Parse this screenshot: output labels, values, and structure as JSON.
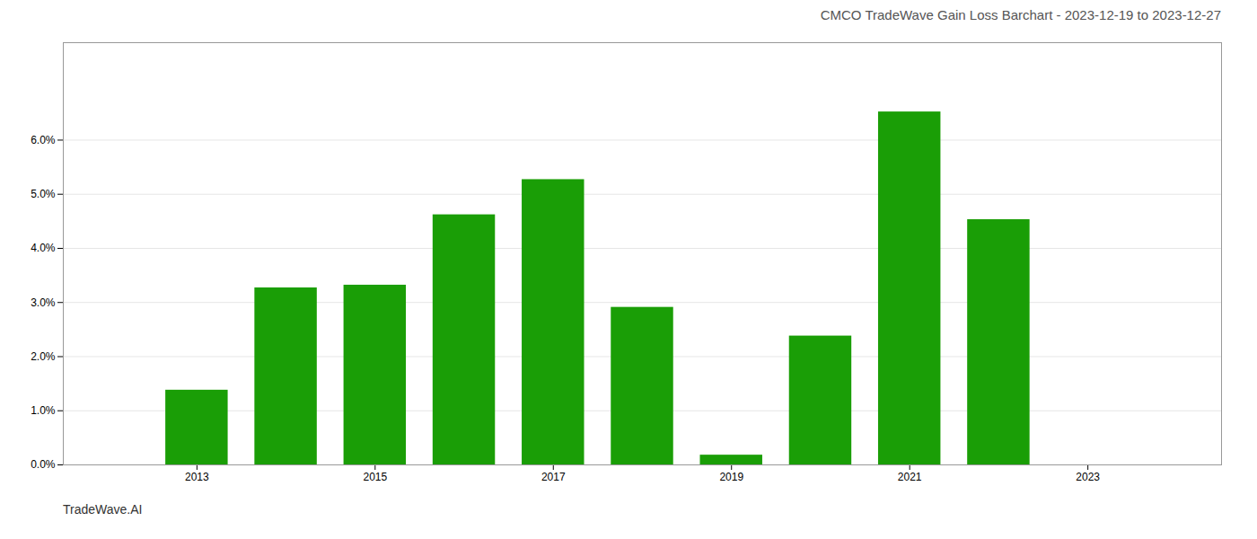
{
  "chart_data": {
    "type": "bar",
    "title": "CMCO TradeWave Gain Loss Barchart - 2023-12-19 to 2023-12-27",
    "annotations": [
      "TradeWave.AI"
    ],
    "x": [
      2013,
      2014,
      2015,
      2016,
      2017,
      2018,
      2019,
      2020,
      2021,
      2022
    ],
    "values": [
      0.0138,
      0.0327,
      0.0332,
      0.0462,
      0.0527,
      0.0291,
      0.0018,
      0.0238,
      0.0652,
      0.0453
    ],
    "color": "#1a9e06",
    "xlim": [
      2011.5,
      2024.5
    ],
    "xticks": [
      2013,
      2015,
      2017,
      2019,
      2021,
      2023
    ],
    "ylim": [
      0,
      0.078
    ],
    "yticks": [
      {
        "value": 0.0,
        "label": "0.0%"
      },
      {
        "value": 0.01,
        "label": "1.0%"
      },
      {
        "value": 0.02,
        "label": "2.0%"
      },
      {
        "value": 0.03,
        "label": "3.0%"
      },
      {
        "value": 0.04,
        "label": "4.0%"
      },
      {
        "value": 0.05,
        "label": "5.0%"
      },
      {
        "value": 0.06,
        "label": "6.0%"
      }
    ],
    "grid": true
  }
}
